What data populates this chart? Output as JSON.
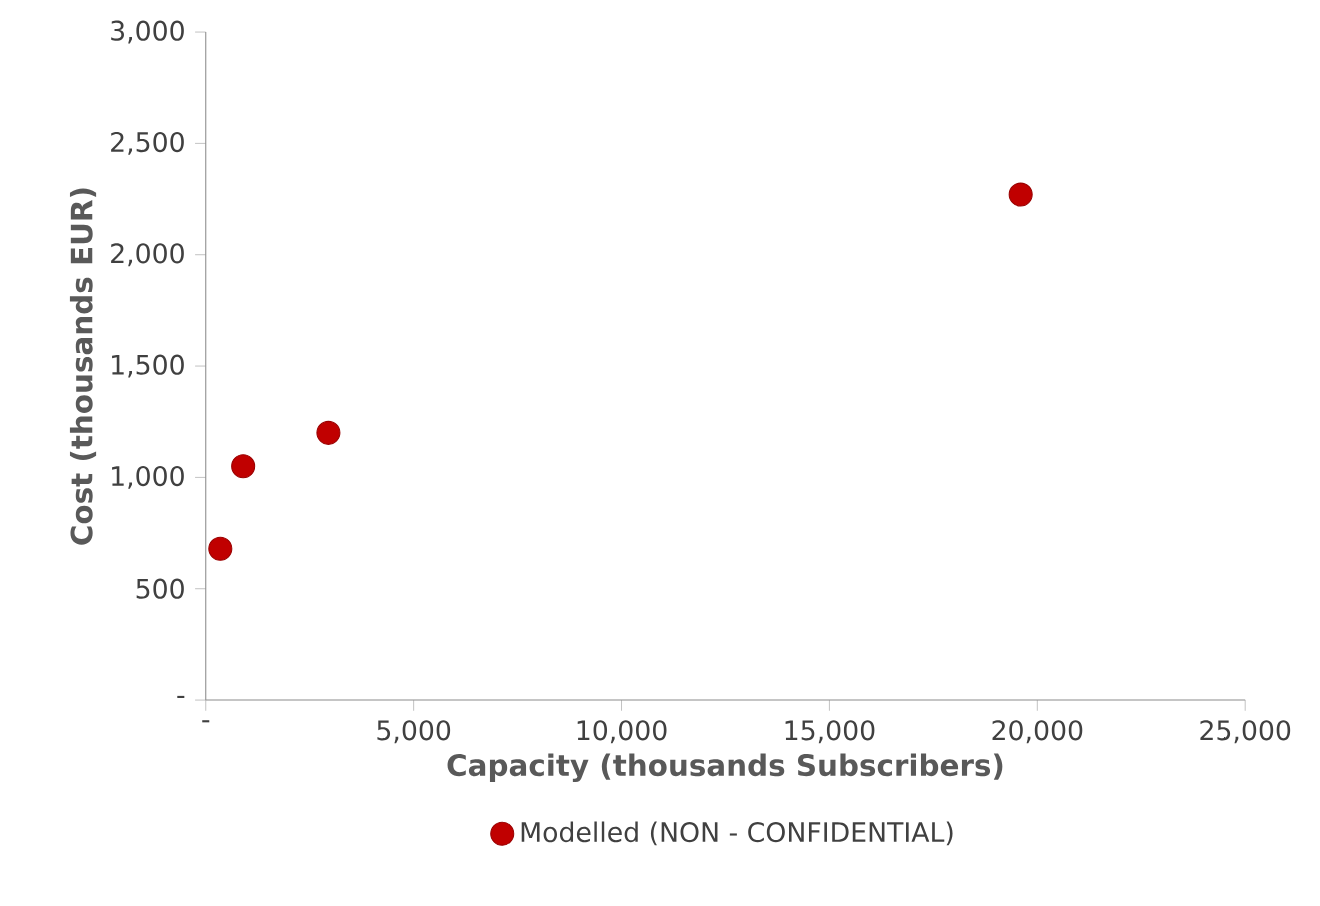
{
  "chart_data": {
    "type": "scatter",
    "xlabel": "Capacity (thousands Subscribers)",
    "ylabel": "Cost (thousands EUR)",
    "series": [
      {
        "name": "Modelled (NON - CONFIDENTIAL)",
        "color": "#c00000",
        "x": [
          350,
          900,
          2950,
          19600
        ],
        "values": [
          680,
          1050,
          1200,
          2270
        ]
      }
    ],
    "xlim": [
      0,
      25000
    ],
    "ylim": [
      0,
      3000
    ],
    "xticks": [
      {
        "value": 0,
        "label": "-"
      },
      {
        "value": 5000,
        "label": "5,000"
      },
      {
        "value": 10000,
        "label": "10,000"
      },
      {
        "value": 15000,
        "label": "15,000"
      },
      {
        "value": 20000,
        "label": "20,000"
      },
      {
        "value": 25000,
        "label": "25,000"
      }
    ],
    "yticks": [
      {
        "value": 0,
        "label": "-"
      },
      {
        "value": 500,
        "label": "500"
      },
      {
        "value": 1000,
        "label": "1,000"
      },
      {
        "value": 1500,
        "label": "1,500"
      },
      {
        "value": 2000,
        "label": "2,000"
      },
      {
        "value": 2500,
        "label": "2,500"
      },
      {
        "value": 3000,
        "label": "3,000"
      }
    ],
    "legend": "bottom",
    "marker": "circle",
    "grid": false
  }
}
